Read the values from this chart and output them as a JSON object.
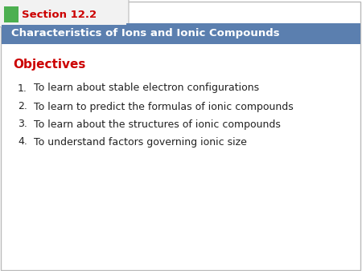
{
  "section_label": "Section 12.2",
  "section_tab_text_color": "#cc0000",
  "green_square_color": "#4caf50",
  "header_bg_color": "#5b7faf",
  "header_text": "Characteristics of Ions and Ionic Compounds",
  "header_text_color": "#ffffff",
  "objectives_label": "Objectives",
  "objectives_color": "#cc0000",
  "bg_color": "#ffffff",
  "border_color": "#bbbbbb",
  "tab_bg_color": "#f2f2f2",
  "items": [
    "To learn about stable electron configurations",
    "To learn to predict the formulas of ionic compounds",
    "To learn about the structures of ionic compounds",
    "To understand factors governing ionic size"
  ],
  "item_text_color": "#222222",
  "font_family": "DejaVu Sans",
  "fig_width": 4.5,
  "fig_height": 3.38,
  "dpi": 100
}
